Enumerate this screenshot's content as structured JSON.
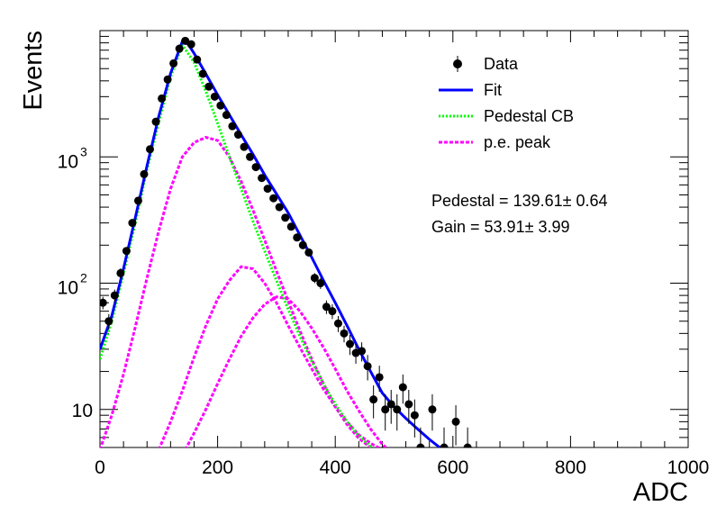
{
  "chart_data": {
    "type": "scatter",
    "xlabel": "ADC",
    "ylabel": "Events",
    "xlim": [
      0,
      1000
    ],
    "ylim": [
      5,
      10000
    ],
    "y_scale": "log",
    "x_ticks": [
      0,
      200,
      400,
      600,
      800,
      1000
    ],
    "x_tick_labels": [
      "0",
      "200",
      "400",
      "600",
      "800",
      "1000"
    ],
    "y_tick_labels": [
      {
        "value": 10,
        "base": "10",
        "exp": ""
      },
      {
        "value": 100,
        "base": "10",
        "exp": "2"
      },
      {
        "value": 1000,
        "base": "10",
        "exp": "3"
      }
    ],
    "legend_position": "top-right",
    "legend": [
      {
        "name": "Data",
        "style": "marker",
        "color": "#000000"
      },
      {
        "name": "Fit",
        "style": "solid",
        "color": "#0000ff"
      },
      {
        "name": "Pedestal CB",
        "style": "dotted",
        "color": "#00ff00"
      },
      {
        "name": "p.e. peak",
        "style": "dashed",
        "color": "#ff00ff"
      }
    ],
    "annotations": [
      "Pedestal = 139.61± 0.64",
      "Gain = 53.91± 3.99"
    ],
    "series": [
      {
        "name": "Data",
        "kind": "points",
        "color": "#000000",
        "x": [
          5,
          15,
          25,
          35,
          45,
          55,
          65,
          75,
          85,
          95,
          105,
          115,
          125,
          135,
          145,
          155,
          165,
          175,
          185,
          195,
          205,
          215,
          225,
          235,
          245,
          255,
          265,
          275,
          285,
          295,
          305,
          315,
          325,
          335,
          345,
          355,
          365,
          375,
          385,
          395,
          405,
          415,
          425,
          435,
          445,
          455,
          465,
          475,
          485,
          495,
          505,
          515,
          525,
          535,
          545,
          555,
          565,
          575,
          585,
          595,
          605,
          615,
          625
        ],
        "y": [
          70,
          50,
          80,
          120,
          180,
          300,
          450,
          730,
          1150,
          1900,
          2900,
          4100,
          5500,
          7200,
          8300,
          7800,
          5900,
          4550,
          3600,
          3000,
          2550,
          2150,
          1750,
          1500,
          1200,
          1000,
          830,
          680,
          560,
          470,
          400,
          330,
          280,
          230,
          200,
          175,
          110,
          100,
          65,
          60,
          48,
          40,
          33,
          28,
          29,
          22,
          12,
          18,
          10,
          11,
          10,
          15,
          11,
          9,
          5,
          0,
          10,
          0,
          5,
          0,
          8,
          0,
          5
        ],
        "err": [
          8,
          7,
          9,
          11,
          13,
          17,
          21,
          27,
          34,
          44,
          54,
          64,
          74,
          85,
          91,
          88,
          77,
          67,
          60,
          55,
          50,
          46,
          42,
          39,
          35,
          32,
          29,
          26,
          24,
          22,
          20,
          18,
          17,
          15,
          14,
          13,
          10,
          10,
          8,
          8,
          7,
          6,
          6,
          5,
          5,
          5,
          3.5,
          4.2,
          3.2,
          3.3,
          3.2,
          3.9,
          3.3,
          3.0,
          2.2,
          0,
          3.2,
          0,
          2.2,
          0,
          2.8,
          0,
          2.2
        ]
      },
      {
        "name": "Fit",
        "kind": "line",
        "color": "#0000ff",
        "x": [
          0,
          20,
          40,
          60,
          80,
          100,
          120,
          140,
          150,
          160,
          180,
          200,
          220,
          240,
          260,
          280,
          300,
          320,
          340,
          360,
          380,
          400,
          420,
          440,
          460,
          480,
          500,
          520,
          540,
          560,
          580
        ],
        "y": [
          30,
          55,
          130,
          330,
          850,
          2100,
          4600,
          8200,
          7800,
          6600,
          4550,
          3100,
          2150,
          1500,
          1050,
          720,
          510,
          360,
          240,
          160,
          105,
          70,
          46,
          30,
          20,
          13.5,
          10.5,
          8.5,
          7,
          5.8,
          4.9
        ]
      },
      {
        "name": "Pedestal CB",
        "kind": "line",
        "color": "#00ff00",
        "x": [
          0,
          20,
          40,
          60,
          80,
          100,
          120,
          140,
          160,
          180,
          200,
          220,
          240,
          260,
          280,
          300,
          320,
          340,
          360,
          380,
          400,
          420,
          440,
          460,
          470
        ],
        "y": [
          25,
          50,
          120,
          300,
          800,
          1900,
          4300,
          7700,
          5600,
          3300,
          1850,
          1000,
          560,
          310,
          180,
          105,
          62,
          38,
          24,
          16,
          11,
          8,
          6.2,
          5.1,
          4.6
        ]
      },
      {
        "name": "p.e. peak 1",
        "kind": "line",
        "color": "#ff00ff",
        "x": [
          0,
          20,
          40,
          60,
          80,
          100,
          120,
          140,
          160,
          180,
          200,
          220,
          240,
          260,
          280,
          300,
          320,
          340,
          360,
          380,
          400,
          420,
          440,
          460,
          470
        ],
        "y": [
          4.8,
          9,
          19,
          45,
          110,
          260,
          560,
          1000,
          1300,
          1430,
          1350,
          1000,
          640,
          380,
          220,
          125,
          72,
          42,
          25,
          16,
          10.5,
          7.6,
          5.9,
          5,
          4.6
        ]
      },
      {
        "name": "p.e. peak 2",
        "kind": "line",
        "color": "#ff00ff",
        "x": [
          100,
          120,
          140,
          160,
          180,
          200,
          220,
          240,
          260,
          280,
          300,
          320,
          340,
          360,
          380,
          400,
          420,
          440,
          460,
          480
        ],
        "y": [
          4.8,
          8,
          14,
          26,
          46,
          75,
          105,
          135,
          130,
          100,
          70,
          46,
          31,
          21,
          14.5,
          10.5,
          8,
          6.3,
          5.4,
          4.8
        ]
      },
      {
        "name": "p.e. peak 3",
        "kind": "line",
        "color": "#ff00ff",
        "x": [
          145,
          160,
          180,
          200,
          220,
          240,
          260,
          280,
          300,
          320,
          340,
          360,
          380,
          400,
          420,
          440,
          460,
          480,
          490
        ],
        "y": [
          4.8,
          6.5,
          10,
          16,
          25,
          38,
          53,
          68,
          78,
          75,
          60,
          44,
          31,
          21,
          14,
          9.8,
          7,
          5.3,
          4.8
        ]
      }
    ]
  }
}
